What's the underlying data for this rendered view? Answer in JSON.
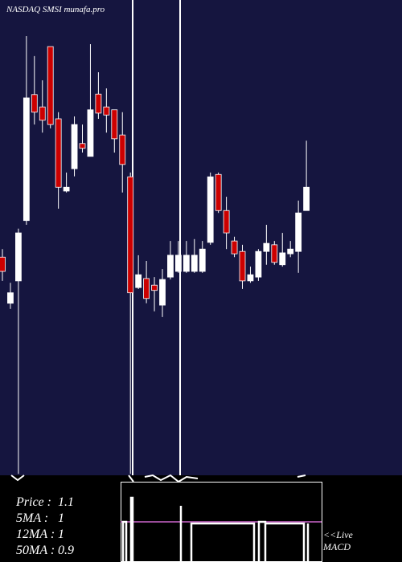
{
  "chart_data": {
    "type": "candlestick",
    "title": "NASDAQ SMSI munafa.pro",
    "up_color": "#ffffff",
    "down_color": "#cc0000",
    "ylim": [
      0.5,
      1.5
    ],
    "open": [
      0.959,
      0.862,
      0.909,
      1.036,
      1.301,
      1.275,
      1.402,
      1.25,
      1.098,
      1.145,
      1.198,
      1.171,
      1.302,
      1.275,
      1.269,
      1.216,
      1.128,
      0.895,
      0.914,
      0.9,
      0.858,
      0.917,
      0.929,
      0.929,
      0.929,
      0.929,
      0.99,
      1.133,
      1.057,
      0.993,
      0.971,
      0.909,
      0.917,
      0.971,
      0.985,
      0.943,
      0.966,
      0.971,
      1.057
    ],
    "high": [
      0.976,
      0.905,
      1.019,
      1.424,
      1.382,
      1.331,
      1.402,
      1.264,
      1.137,
      1.255,
      1.238,
      1.407,
      1.348,
      1.314,
      1.269,
      1.264,
      1.137,
      0.963,
      0.951,
      0.917,
      0.934,
      0.993,
      0.993,
      0.993,
      0.997,
      0.993,
      1.137,
      1.137,
      1.086,
      1.002,
      0.985,
      0.939,
      0.976,
      1.027,
      0.993,
      1.01,
      0.993,
      1.078,
      1.204
    ],
    "low": [
      0.909,
      0.85,
      0.503,
      1.027,
      1.238,
      1.221,
      1.23,
      1.061,
      1.095,
      1.129,
      1.179,
      1.171,
      1.25,
      1.221,
      1.179,
      1.095,
      0.503,
      0.892,
      0.862,
      0.845,
      0.833,
      0.912,
      0.926,
      0.926,
      0.926,
      0.926,
      0.985,
      1.052,
      0.976,
      0.959,
      0.892,
      0.905,
      0.909,
      0.943,
      0.943,
      0.939,
      0.959,
      0.926,
      1.057
    ],
    "close": [
      0.929,
      0.884,
      1.01,
      1.294,
      1.264,
      1.247,
      1.238,
      1.106,
      1.106,
      1.238,
      1.188,
      1.269,
      1.262,
      1.258,
      1.208,
      1.154,
      0.884,
      0.922,
      0.872,
      0.889,
      0.912,
      0.963,
      0.963,
      0.963,
      0.963,
      0.976,
      1.128,
      1.057,
      1.01,
      0.966,
      0.909,
      0.922,
      0.971,
      0.988,
      0.948,
      0.968,
      0.976,
      1.052,
      1.106
    ],
    "stats": [
      {
        "label": "Price   :",
        "value": 1.1
      },
      {
        "label": "5MA :",
        "value": 1
      },
      {
        "label": "12MA :",
        "value": 1
      },
      {
        "label": "50MA :",
        "value": 0.9
      }
    ],
    "macd_label": [
      "<<Live",
      "MACD"
    ]
  }
}
